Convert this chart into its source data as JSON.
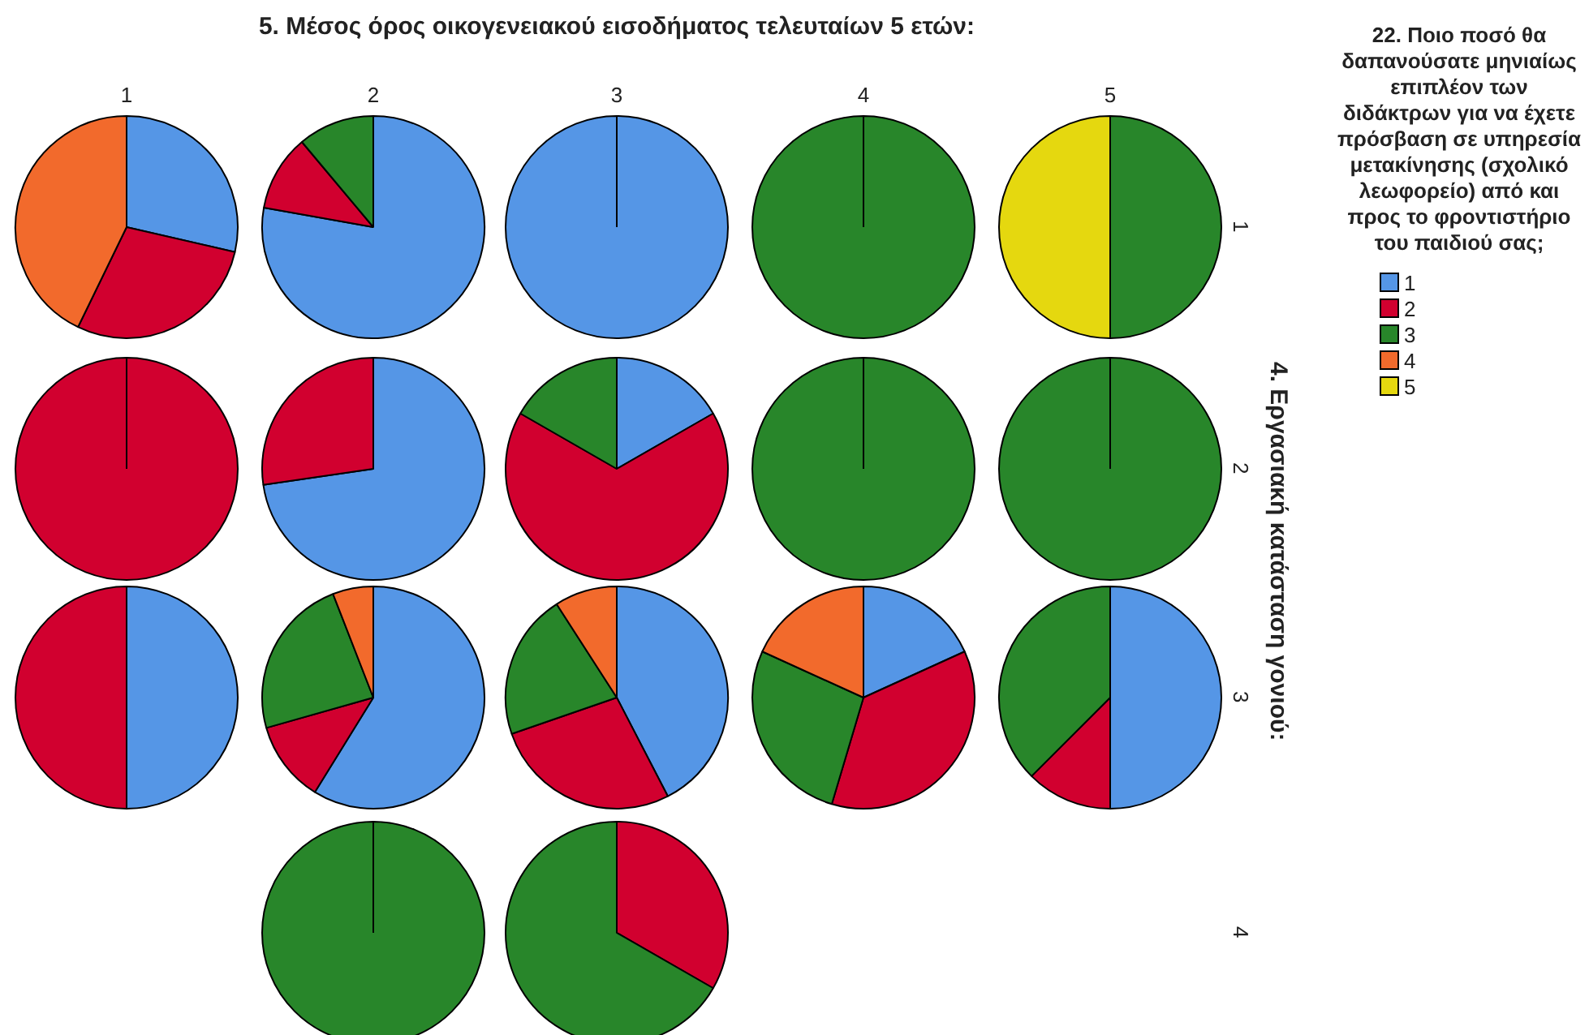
{
  "chart_data": [
    {
      "type": "other",
      "title": "5. Μέσος όρος οικογενειακού εισοδήματος τελευταίων 5 ετών:",
      "y2label": "4. Εργασιακή κατάσταση γονιού:"
    },
    {
      "type": "pie",
      "title": "1",
      "categories": [
        "1",
        "2",
        "3",
        "4",
        "5"
      ],
      "colors": [
        "#5596e6",
        "#d1002f",
        "#28862a",
        "#f26a2c",
        "#e5d80f"
      ],
      "values": [
        28.6,
        28.6,
        0,
        42.8,
        0
      ],
      "legend": "right",
      "legend_title": "22. Ποιο ποσό θα δαπανούσατε μηνιαίως επιπλέον των διδάκτρων για να έχετε πρόσβαση σε υπηρεσία μετακίνησης (σχολικό λεωφορείο) από και προς το φροντιστήριο του παιδιού σας;"
    },
    {
      "type": "pie",
      "title": "2",
      "categories": [
        null,
        null,
        null,
        null,
        null
      ],
      "colors": [
        "#5596e6",
        "#d1002f",
        "#28862a",
        "#f26a2c",
        "#e5d80f"
      ],
      "values": [
        77.8,
        11.1,
        11.1,
        0,
        0
      ]
    },
    {
      "type": "pie",
      "title": "3",
      "categories": [
        null,
        null,
        null,
        null,
        null
      ],
      "colors": [
        "#5596e6",
        "#d1002f",
        "#28862a",
        "#f26a2c",
        "#e5d80f"
      ],
      "values": [
        100,
        0,
        0,
        0,
        0
      ]
    },
    {
      "type": "pie",
      "title": "4",
      "categories": [
        null,
        null,
        null,
        null,
        null
      ],
      "colors": [
        "#5596e6",
        "#d1002f",
        "#28862a",
        "#f26a2c",
        "#e5d80f"
      ],
      "values": [
        0,
        0,
        100,
        0,
        0
      ]
    },
    {
      "type": "pie",
      "title": "5",
      "categories": [
        null,
        null,
        null,
        null,
        null
      ],
      "colors": [
        "#5596e6",
        "#d1002f",
        "#28862a",
        "#f26a2c",
        "#e5d80f"
      ],
      "values": [
        0,
        0,
        50,
        0,
        50
      ],
      "annotations": [
        "1"
      ]
    },
    {
      "type": "pie",
      "categories": [
        null,
        null,
        null,
        null,
        null
      ],
      "colors": [
        "#5596e6",
        "#d1002f",
        "#28862a",
        "#f26a2c",
        "#e5d80f"
      ],
      "values": [
        0,
        100,
        0,
        0,
        0
      ]
    },
    {
      "type": "pie",
      "categories": [
        null,
        null,
        null,
        null,
        null
      ],
      "colors": [
        "#5596e6",
        "#d1002f",
        "#28862a",
        "#f26a2c",
        "#e5d80f"
      ],
      "values": [
        72.7,
        27.3,
        0,
        0,
        0
      ]
    },
    {
      "type": "pie",
      "categories": [
        null,
        null,
        null,
        null,
        null
      ],
      "colors": [
        "#5596e6",
        "#d1002f",
        "#28862a",
        "#f26a2c",
        "#e5d80f"
      ],
      "values": [
        16.7,
        66.6,
        16.7,
        0,
        0
      ]
    },
    {
      "type": "pie",
      "categories": [
        null,
        null,
        null,
        null,
        null
      ],
      "colors": [
        "#5596e6",
        "#d1002f",
        "#28862a",
        "#f26a2c",
        "#e5d80f"
      ],
      "values": [
        0,
        0,
        100,
        0,
        0
      ]
    },
    {
      "type": "pie",
      "categories": [
        null,
        null,
        null,
        null,
        null
      ],
      "colors": [
        "#5596e6",
        "#d1002f",
        "#28862a",
        "#f26a2c",
        "#e5d80f"
      ],
      "values": [
        0,
        0,
        100,
        0,
        0
      ],
      "annotations": [
        "2"
      ]
    },
    {
      "type": "pie",
      "categories": [
        null,
        null,
        null,
        null,
        null
      ],
      "colors": [
        "#5596e6",
        "#d1002f",
        "#28862a",
        "#f26a2c",
        "#e5d80f"
      ],
      "values": [
        50,
        50,
        0,
        0,
        0
      ]
    },
    {
      "type": "pie",
      "categories": [
        null,
        null,
        null,
        null,
        null
      ],
      "colors": [
        "#5596e6",
        "#d1002f",
        "#28862a",
        "#f26a2c",
        "#e5d80f"
      ],
      "values": [
        58.8,
        11.8,
        23.5,
        5.9,
        0
      ]
    },
    {
      "type": "pie",
      "categories": [
        null,
        null,
        null,
        null,
        null
      ],
      "colors": [
        "#5596e6",
        "#d1002f",
        "#28862a",
        "#f26a2c",
        "#e5d80f"
      ],
      "values": [
        42.4,
        27.3,
        21.2,
        9.1,
        0
      ]
    },
    {
      "type": "pie",
      "categories": [
        null,
        null,
        null,
        null,
        null
      ],
      "colors": [
        "#5596e6",
        "#d1002f",
        "#28862a",
        "#f26a2c",
        "#e5d80f"
      ],
      "values": [
        18.2,
        36.4,
        27.2,
        18.2,
        0
      ]
    },
    {
      "type": "pie",
      "categories": [
        null,
        null,
        null,
        null,
        null
      ],
      "colors": [
        "#5596e6",
        "#d1002f",
        "#28862a",
        "#f26a2c",
        "#e5d80f"
      ],
      "values": [
        50,
        12.5,
        37.5,
        0,
        0
      ],
      "annotations": [
        "3"
      ]
    },
    {
      "type": "pie",
      "categories": [
        null,
        null,
        null,
        null,
        null
      ],
      "colors": [
        "#5596e6",
        "#d1002f",
        "#28862a",
        "#f26a2c",
        "#e5d80f"
      ],
      "values": [
        0,
        0,
        100,
        0,
        0
      ]
    },
    {
      "type": "pie",
      "categories": [
        null,
        null,
        null,
        null,
        null
      ],
      "colors": [
        "#5596e6",
        "#d1002f",
        "#28862a",
        "#f26a2c",
        "#e5d80f"
      ],
      "values": [
        0,
        33.3,
        66.7,
        0,
        0
      ],
      "annotations": [
        "4"
      ]
    }
  ]
}
